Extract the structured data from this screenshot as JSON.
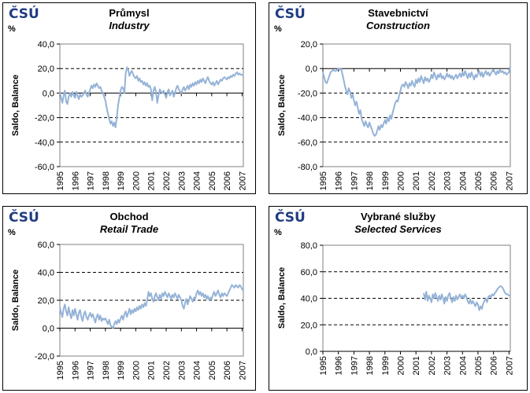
{
  "labels": {
    "percent": "%",
    "y_axis": "Saldo, Balance"
  },
  "logo": {
    "text": "ČSÚ"
  },
  "style": {
    "line_color": "#95B3D7",
    "logo_color": "#203C82",
    "plot_border_color": "#808080",
    "grid_color": "#000000"
  },
  "x_axis_years": [
    "1995",
    "1996",
    "1997",
    "1998",
    "1999",
    "2000",
    "2001",
    "2002",
    "2003",
    "2004",
    "2005",
    "2006",
    "2007"
  ],
  "chart_data": [
    {
      "type": "line",
      "id": "industry",
      "title": "Průmysl",
      "subtitle": "Industry",
      "ylabel": "Saldo, Balance",
      "unit": "%",
      "ylim": [
        -60,
        40
      ],
      "ytick_step": 20,
      "grid": "dashed-horizontal",
      "legend": "none",
      "x_start": "1995-01",
      "x_step": "month",
      "start_month": 0,
      "values": [
        1,
        -4,
        -8,
        -2,
        2,
        -7,
        -9,
        -3,
        0,
        -3,
        1,
        -2,
        -4,
        1,
        -2,
        -5,
        -1,
        -3,
        -2,
        0,
        2,
        -1,
        -3,
        0,
        3,
        6,
        4,
        7,
        5,
        8,
        6,
        4,
        5,
        2,
        0,
        -3,
        -6,
        -12,
        -17,
        -21,
        -25,
        -23,
        -27,
        -24,
        -28,
        -20,
        -10,
        -4,
        2,
        5,
        4,
        0,
        16,
        21,
        19,
        14,
        17,
        18,
        15,
        13,
        12,
        14,
        10,
        12,
        9,
        10,
        7,
        9,
        6,
        8,
        5,
        6,
        3,
        -6,
        2,
        5,
        1,
        -8,
        -2,
        3,
        1,
        0,
        2,
        -1,
        -4,
        1,
        3,
        -2,
        0,
        2,
        -3,
        0,
        4,
        6,
        3,
        1,
        0,
        3,
        5,
        2,
        4,
        6,
        3,
        7,
        5,
        8,
        6,
        9,
        7,
        10,
        8,
        11,
        9,
        12,
        10,
        8,
        11,
        13,
        10,
        8,
        7,
        9,
        6,
        8,
        10,
        7,
        9,
        11,
        10,
        12,
        13,
        12,
        11,
        13,
        12,
        14,
        13,
        15,
        14,
        16,
        17,
        15,
        16,
        15,
        15,
        14
      ]
    },
    {
      "type": "line",
      "id": "construction",
      "title": "Stavebnictví",
      "subtitle": "Construction",
      "ylabel": "Saldo, Balance",
      "unit": "%",
      "ylim": [
        -80,
        20
      ],
      "ytick_step": 20,
      "grid": "dashed-horizontal",
      "legend": "none",
      "x_start": "1995-01",
      "x_step": "month",
      "start_month": 0,
      "values": [
        -3,
        -7,
        -11,
        -12,
        -9,
        -6,
        -3,
        -2,
        -1,
        -2,
        -2,
        -1,
        0,
        -1,
        0,
        -4,
        -9,
        -14,
        -18,
        -21,
        -16,
        -19,
        -24,
        -21,
        -26,
        -30,
        -27,
        -32,
        -37,
        -34,
        -41,
        -44,
        -47,
        -43,
        -46,
        -48,
        -44,
        -47,
        -50,
        -53,
        -55,
        -54,
        -51,
        -47,
        -50,
        -46,
        -48,
        -45,
        -42,
        -45,
        -40,
        -43,
        -38,
        -41,
        -36,
        -32,
        -28,
        -26,
        -27,
        -22,
        -18,
        -14,
        -13,
        -15,
        -11,
        -13,
        -16,
        -12,
        -14,
        -10,
        -13,
        -15,
        -9,
        -12,
        -8,
        -11,
        -6,
        -9,
        -12,
        -7,
        -10,
        -8,
        -11,
        -9,
        -5,
        -8,
        -3,
        -6,
        -9,
        -5,
        -7,
        -4,
        -8,
        -6,
        -9,
        -7,
        -4,
        -7,
        -5,
        -8,
        -6,
        -9,
        -7,
        -5,
        -8,
        -6,
        -4,
        -7,
        -3,
        -6,
        -2,
        -5,
        -8,
        -4,
        -7,
        -3,
        -6,
        -9,
        -5,
        -7,
        -4,
        -2,
        -6,
        -3,
        -7,
        -4,
        -2,
        -5,
        -3,
        -6,
        -4,
        -2,
        -1,
        -3,
        -5,
        -2,
        -4,
        -1,
        -3,
        -2,
        -4,
        -3,
        -5,
        -4,
        -3,
        2
      ]
    },
    {
      "type": "line",
      "id": "retail",
      "title": "Obchod",
      "subtitle": "Retail Trade",
      "ylabel": "Saldo, Balance",
      "unit": "%",
      "ylim": [
        -20,
        60
      ],
      "ytick_step": 20,
      "grid": "dashed-horizontal",
      "legend": "none",
      "x_start": "1995-01",
      "x_step": "month",
      "start_month": 0,
      "values": [
        15,
        11,
        8,
        14,
        17,
        12,
        9,
        15,
        10,
        7,
        13,
        9,
        14,
        10,
        6,
        11,
        13,
        8,
        5,
        10,
        12,
        8,
        6,
        9,
        11,
        8,
        10,
        7,
        4,
        8,
        10,
        6,
        9,
        5,
        7,
        6,
        7,
        5,
        3,
        6,
        2,
        1,
        0,
        3,
        5,
        3,
        6,
        4,
        7,
        9,
        6,
        10,
        12,
        8,
        11,
        14,
        10,
        13,
        11,
        14,
        12,
        15,
        13,
        16,
        14,
        17,
        15,
        18,
        16,
        20,
        26,
        23,
        25,
        21,
        19,
        23,
        25,
        22,
        20,
        24,
        21,
        25,
        23,
        26,
        24,
        22,
        25,
        23,
        21,
        24,
        22,
        25,
        23,
        21,
        24,
        22,
        20,
        16,
        14,
        18,
        21,
        17,
        20,
        23,
        21,
        19,
        22,
        21,
        25,
        27,
        24,
        26,
        23,
        25,
        22,
        24,
        21,
        23,
        20,
        22,
        21,
        24,
        26,
        23,
        25,
        27,
        24,
        22,
        25,
        23,
        25,
        24,
        23,
        25,
        27,
        29,
        31,
        30,
        29,
        31,
        30,
        29,
        31,
        30,
        28,
        27
      ]
    },
    {
      "type": "line",
      "id": "services",
      "title": "Vybrané služby",
      "subtitle": "Selected Services",
      "ylabel": "Saldo, Balance",
      "unit": "%",
      "ylim": [
        0,
        80
      ],
      "ytick_step": 20,
      "grid": "dashed-horizontal",
      "legend": "none",
      "x_start": "2001-07",
      "x_step": "month",
      "start_month": 78,
      "values": [
        44,
        39,
        45,
        38,
        42,
        40,
        37,
        43,
        40,
        44,
        41,
        38,
        42,
        39,
        43,
        40,
        36,
        41,
        38,
        42,
        44,
        40,
        37,
        41,
        38,
        42,
        39,
        41,
        43,
        40,
        42,
        40,
        43,
        41,
        38,
        36,
        39,
        36,
        38,
        36,
        34,
        37,
        35,
        31,
        34,
        32,
        36,
        38,
        40,
        37,
        41,
        42,
        41,
        43,
        42,
        44,
        45,
        47,
        48,
        49,
        49,
        48,
        46,
        44,
        43,
        43,
        42,
        42
      ]
    }
  ]
}
